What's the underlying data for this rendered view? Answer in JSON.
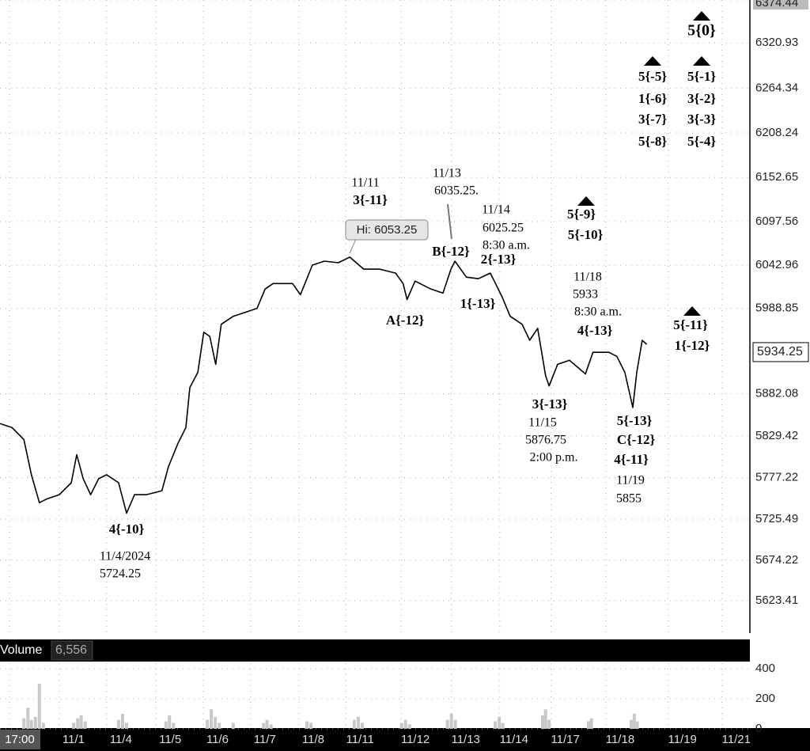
{
  "chart_data": [
    {
      "type": "line",
      "x": [
        -0.19,
        0.05,
        0.29,
        0.44,
        0.6,
        0.76,
        1.0,
        1.24,
        1.35,
        1.48,
        1.63,
        1.79,
        1.95,
        2.19,
        2.35,
        2.51,
        2.75,
        3.06,
        3.19,
        3.38,
        3.54,
        3.62,
        3.78,
        3.9,
        4.02,
        4.14,
        4.25,
        4.49,
        4.73,
        4.97,
        5.13,
        5.29,
        5.68,
        5.84,
        6.08,
        6.32,
        6.6,
        6.83,
        7.11,
        7.43,
        7.75,
        7.9,
        7.98,
        8.14,
        8.46,
        8.7,
        8.86,
        8.94,
        9.17,
        9.41,
        9.65,
        9.73,
        9.89,
        10.05,
        10.29,
        10.44,
        10.6,
        10.76,
        10.83,
        11.0,
        11.24,
        11.56,
        11.71,
        12.03,
        12.19,
        12.35,
        12.51,
        12.59,
        12.7,
        12.79
      ],
      "values": [
        5845,
        5840,
        5825,
        5781,
        5746,
        5751,
        5756,
        5771,
        5806,
        5776,
        5756,
        5776,
        5781,
        5771,
        5733,
        5756,
        5756,
        5761,
        5791,
        5820,
        5840,
        5890,
        5909,
        5959,
        5954,
        5919,
        5969,
        5979,
        5984,
        5989,
        6013,
        6020,
        6020,
        6006,
        6043,
        6048,
        6046,
        6053,
        6038,
        6038,
        6033,
        6020,
        6000,
        6023,
        6013,
        6008,
        6038,
        6048,
        6028,
        6026,
        6033,
        6023,
        6003,
        5979,
        5969,
        5949,
        5964,
        5905,
        5892,
        5919,
        5924,
        5907,
        5934,
        5934,
        5929,
        5909,
        5865,
        5909,
        5949,
        5944
      ],
      "color": "#000000",
      "xlim": [
        -0.19,
        14.86
      ],
      "xticks": [
        {
          "value": 0,
          "label": "17:00"
        },
        {
          "value": 1.0,
          "label": "11/1"
        },
        {
          "value": 1.95,
          "label": "11/4"
        },
        {
          "value": 2.94,
          "label": "11/5"
        },
        {
          "value": 3.89,
          "label": "11/6"
        },
        {
          "value": 4.84,
          "label": "11/7"
        },
        {
          "value": 5.81,
          "label": "11/8"
        },
        {
          "value": 6.75,
          "label": "11/11"
        },
        {
          "value": 7.86,
          "label": "11/12"
        },
        {
          "value": 8.87,
          "label": "11/13"
        },
        {
          "value": 9.84,
          "label": "11/14"
        },
        {
          "value": 10.87,
          "label": "11/17"
        },
        {
          "value": 11.97,
          "label": "11/18"
        },
        {
          "value": 13.22,
          "label": "11/19"
        },
        {
          "value": 14.3,
          "label": "11/21"
        }
      ],
      "ylim": [
        5583,
        6374.44
      ],
      "yticks": [
        5623.41,
        5674.22,
        5725.49,
        5777.22,
        5829.42,
        5882.08,
        5988.85,
        6042.96,
        6097.56,
        6152.65,
        6208.24,
        6264.34,
        6320.93,
        6374.44
      ],
      "grid": true,
      "last_price": 5934.25,
      "high_label": "Hi: 6053.25",
      "annotations": [
        "4{-10}",
        "11/4/2024",
        "5724.25",
        "11/11",
        "3{-11}",
        "11/13",
        "6035.25.",
        "11/14",
        "6025.25",
        "8:30 a.m.",
        "B{-12}",
        "2{-13}",
        "A{-12}",
        "1{-13}",
        "5{-9}",
        "5{-10}",
        "11/18",
        "5933",
        "8:30 a.m.",
        "4{-13}",
        "3{-13}",
        "11/15",
        "5876.75",
        "2:00 p.m.",
        "5{-13}",
        "C{-12}",
        "4{-11}",
        "11/19",
        "5855",
        "5{-11}",
        "1{-12}",
        "5{-5}",
        "1{-6}",
        "3{-7}",
        "5{-8}",
        "5{-1}",
        "3{-2}",
        "3{-3}",
        "5{-4}",
        "5{0}"
      ]
    },
    {
      "type": "bar",
      "title": "Volume",
      "current": {
        "value": 6556,
        "label": "6,556"
      },
      "x": [
        0.29,
        0.37,
        0.44,
        0.52,
        0.6,
        0.68,
        1.29,
        1.37,
        1.44,
        1.52,
        2.19,
        2.27,
        2.35,
        3.14,
        3.21,
        3.29,
        3.97,
        4.05,
        4.13,
        4.21,
        4.49,
        5.1,
        5.17,
        5.25,
        5.97,
        6.05,
        6.92,
        7.0,
        7.08,
        7.87,
        7.95,
        8.03,
        8.79,
        8.87,
        8.95,
        9.75,
        9.83,
        9.9,
        10.7,
        10.76,
        10.83,
        11.62,
        11.68,
        12.48,
        12.54,
        12.6
      ],
      "values": [
        70,
        140,
        60,
        80,
        300,
        40,
        40,
        70,
        90,
        50,
        60,
        100,
        40,
        50,
        90,
        40,
        60,
        130,
        80,
        40,
        40,
        40,
        60,
        30,
        50,
        40,
        60,
        80,
        40,
        40,
        60,
        30,
        60,
        100,
        60,
        50,
        80,
        40,
        90,
        130,
        60,
        50,
        70,
        60,
        100,
        50
      ],
      "color": "#c8c8c8",
      "xlim": [
        -0.19,
        14.86
      ],
      "ylim": [
        0,
        437
      ],
      "yticks": [
        0,
        200,
        400
      ],
      "grid": true
    }
  ]
}
